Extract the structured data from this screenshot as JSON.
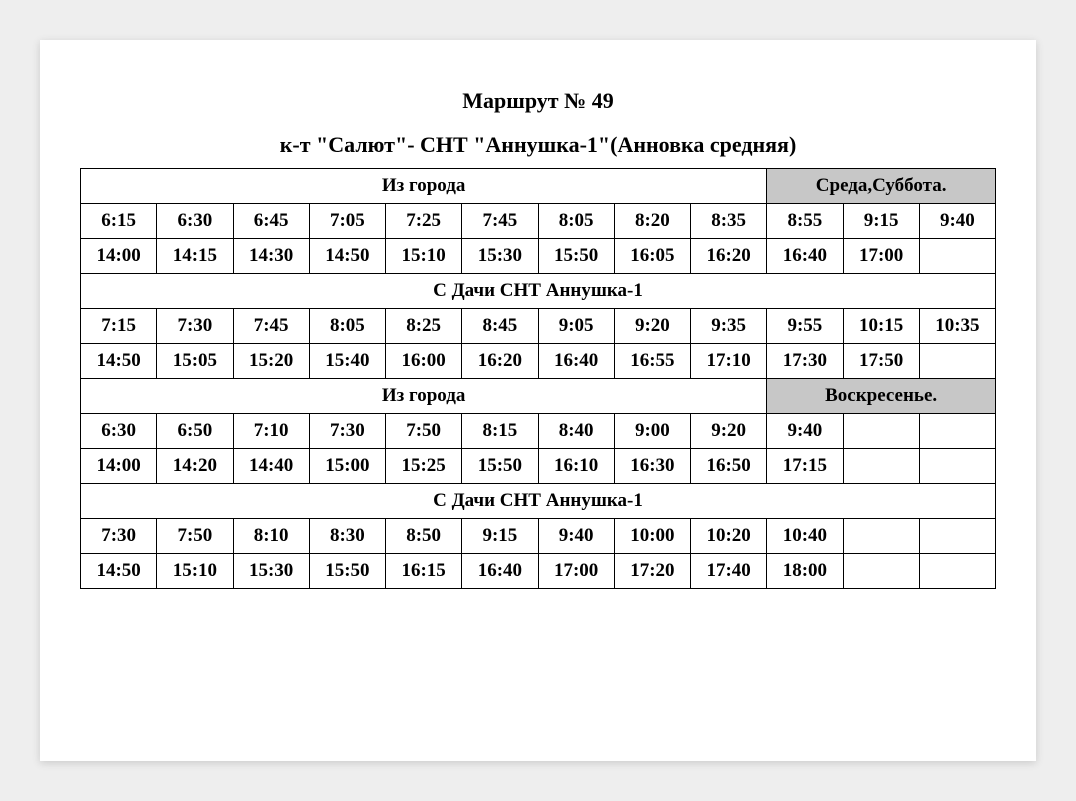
{
  "title": "Маршрут № 49",
  "subtitle": "к-т \"Салют\"- СНТ \"Аннушка-1\"(Анновка средняя)",
  "sections": {
    "s1": {
      "header": "Из города",
      "day": "Среда,Суббота."
    },
    "s2": {
      "header": "С Дачи СНТ Аннушка-1"
    },
    "s3": {
      "header": "Из города",
      "day": "Воскресенье."
    },
    "s4": {
      "header": "С Дачи СНТ Аннушка-1"
    }
  },
  "rows": {
    "r1": [
      "6:15",
      "6:30",
      "6:45",
      "7:05",
      "7:25",
      "7:45",
      "8:05",
      "8:20",
      "8:35",
      "8:55",
      "9:15",
      "9:40"
    ],
    "r2": [
      "14:00",
      "14:15",
      "14:30",
      "14:50",
      "15:10",
      "15:30",
      "15:50",
      "16:05",
      "16:20",
      "16:40",
      "17:00",
      ""
    ],
    "r3": [
      "7:15",
      "7:30",
      "7:45",
      "8:05",
      "8:25",
      "8:45",
      "9:05",
      "9:20",
      "9:35",
      "9:55",
      "10:15",
      "10:35"
    ],
    "r4": [
      "14:50",
      "15:05",
      "15:20",
      "15:40",
      "16:00",
      "16:20",
      "16:40",
      "16:55",
      "17:10",
      "17:30",
      "17:50",
      ""
    ],
    "r5": [
      "6:30",
      "6:50",
      "7:10",
      "7:30",
      "7:50",
      "8:15",
      "8:40",
      "9:00",
      "9:20",
      "9:40",
      "",
      ""
    ],
    "r6": [
      "14:00",
      "14:20",
      "14:40",
      "15:00",
      "15:25",
      "15:50",
      "16:10",
      "16:30",
      "16:50",
      "17:15",
      "",
      ""
    ],
    "r7": [
      "7:30",
      "7:50",
      "8:10",
      "8:30",
      "8:50",
      "9:15",
      "9:40",
      "10:00",
      "10:20",
      "10:40",
      "",
      ""
    ],
    "r8": [
      "14:50",
      "15:10",
      "15:30",
      "15:50",
      "16:15",
      "16:40",
      "17:00",
      "17:20",
      "17:40",
      "18:00",
      "",
      ""
    ]
  },
  "style": {
    "page_bg": "#ffffff",
    "body_bg": "#eeeeee",
    "border_color": "#000000",
    "gray_header_bg": "#c7c7c7",
    "font_family": "Times New Roman",
    "title_fontsize": 22,
    "cell_fontsize": 19,
    "day_fontsize": 16,
    "columns": 12
  }
}
